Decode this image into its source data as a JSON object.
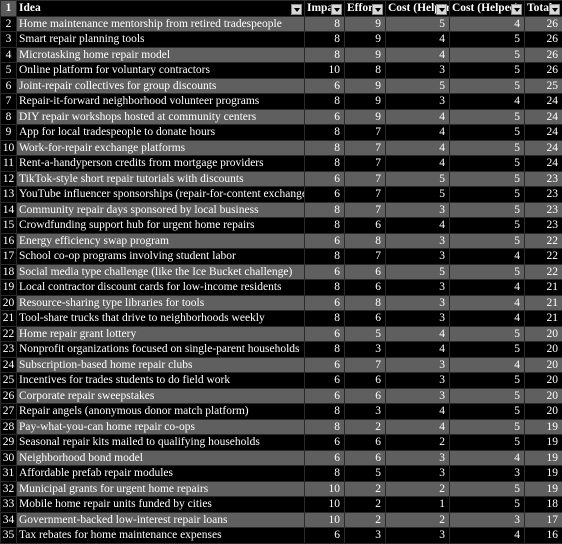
{
  "columns": [
    "Idea",
    "Impact",
    "Effort",
    "Cost (Helper)",
    "Cost (Helpee)",
    "Total"
  ],
  "header_row_number": "1",
  "rows": [
    {
      "n": "2",
      "idea": "Home maintenance mentorship from retired tradespeople",
      "impact": "8",
      "effort": "9",
      "ch": "5",
      "chee": "4",
      "total": "26"
    },
    {
      "n": "3",
      "idea": "Smart repair planning tools",
      "impact": "8",
      "effort": "9",
      "ch": "4",
      "chee": "5",
      "total": "26"
    },
    {
      "n": "4",
      "idea": "Microtasking home repair model",
      "impact": "8",
      "effort": "9",
      "ch": "4",
      "chee": "5",
      "total": "26"
    },
    {
      "n": "5",
      "idea": "Online platform for voluntary contractors",
      "impact": "10",
      "effort": "8",
      "ch": "3",
      "chee": "5",
      "total": "26"
    },
    {
      "n": "6",
      "idea": "Joint-repair collectives for group discounts",
      "impact": "6",
      "effort": "9",
      "ch": "5",
      "chee": "5",
      "total": "25"
    },
    {
      "n": "7",
      "idea": "Repair-it-forward neighborhood volunteer programs",
      "impact": "8",
      "effort": "9",
      "ch": "3",
      "chee": "4",
      "total": "24"
    },
    {
      "n": "8",
      "idea": "DIY repair workshops hosted at community centers",
      "impact": "6",
      "effort": "9",
      "ch": "4",
      "chee": "5",
      "total": "24"
    },
    {
      "n": "9",
      "idea": "App for local tradespeople to donate hours",
      "impact": "8",
      "effort": "7",
      "ch": "4",
      "chee": "5",
      "total": "24"
    },
    {
      "n": "10",
      "idea": "Work-for-repair exchange platforms",
      "impact": "8",
      "effort": "7",
      "ch": "4",
      "chee": "5",
      "total": "24"
    },
    {
      "n": "11",
      "idea": "Rent-a-handyperson credits from mortgage providers",
      "impact": "8",
      "effort": "7",
      "ch": "4",
      "chee": "5",
      "total": "24"
    },
    {
      "n": "12",
      "idea": "TikTok-style short repair tutorials with discounts",
      "impact": "6",
      "effort": "7",
      "ch": "5",
      "chee": "5",
      "total": "23"
    },
    {
      "n": "13",
      "idea": "YouTube influencer sponsorships (repair-for-content exchanges",
      "impact": "6",
      "effort": "7",
      "ch": "5",
      "chee": "5",
      "total": "23"
    },
    {
      "n": "14",
      "idea": "Community repair days sponsored by local business",
      "impact": "8",
      "effort": "7",
      "ch": "3",
      "chee": "5",
      "total": "23"
    },
    {
      "n": "15",
      "idea": "Crowdfunding support hub for urgent home repairs",
      "impact": "8",
      "effort": "6",
      "ch": "4",
      "chee": "5",
      "total": "23"
    },
    {
      "n": "16",
      "idea": "Energy efficiency swap program",
      "impact": "6",
      "effort": "8",
      "ch": "3",
      "chee": "5",
      "total": "22"
    },
    {
      "n": "17",
      "idea": "School co-op programs involving student labor",
      "impact": "8",
      "effort": "7",
      "ch": "3",
      "chee": "4",
      "total": "22"
    },
    {
      "n": "18",
      "idea": "Social media type challenge (like the Ice Bucket challenge)",
      "impact": "6",
      "effort": "6",
      "ch": "5",
      "chee": "5",
      "total": "22"
    },
    {
      "n": "19",
      "idea": "Local contractor discount cards for low-income residents",
      "impact": "8",
      "effort": "6",
      "ch": "3",
      "chee": "4",
      "total": "21"
    },
    {
      "n": "20",
      "idea": "Resource-sharing type libraries for tools",
      "impact": "6",
      "effort": "8",
      "ch": "3",
      "chee": "4",
      "total": "21"
    },
    {
      "n": "21",
      "idea": "Tool-share trucks that drive to neighborhoods weekly",
      "impact": "8",
      "effort": "6",
      "ch": "3",
      "chee": "4",
      "total": "21"
    },
    {
      "n": "22",
      "idea": "Home repair grant lottery",
      "impact": "6",
      "effort": "5",
      "ch": "4",
      "chee": "5",
      "total": "20"
    },
    {
      "n": "23",
      "idea": "Nonprofit organizations focused on single-parent households",
      "impact": "8",
      "effort": "3",
      "ch": "4",
      "chee": "5",
      "total": "20"
    },
    {
      "n": "24",
      "idea": "Subscription-based home repair clubs",
      "impact": "6",
      "effort": "7",
      "ch": "3",
      "chee": "4",
      "total": "20"
    },
    {
      "n": "25",
      "idea": "Incentives for trades students to do field work",
      "impact": "6",
      "effort": "6",
      "ch": "3",
      "chee": "5",
      "total": "20"
    },
    {
      "n": "26",
      "idea": "Corporate repair sweepstakes",
      "impact": "6",
      "effort": "6",
      "ch": "3",
      "chee": "5",
      "total": "20"
    },
    {
      "n": "27",
      "idea": "Repair angels (anonymous donor match platform)",
      "impact": "8",
      "effort": "3",
      "ch": "4",
      "chee": "5",
      "total": "20"
    },
    {
      "n": "28",
      "idea": "Pay-what-you-can home repair co-ops",
      "impact": "8",
      "effort": "2",
      "ch": "4",
      "chee": "5",
      "total": "19"
    },
    {
      "n": "29",
      "idea": "Seasonal repair kits mailed to qualifying households",
      "impact": "6",
      "effort": "6",
      "ch": "2",
      "chee": "5",
      "total": "19"
    },
    {
      "n": "30",
      "idea": "Neighborhood bond model",
      "impact": "6",
      "effort": "6",
      "ch": "3",
      "chee": "4",
      "total": "19"
    },
    {
      "n": "31",
      "idea": "Affordable prefab repair modules",
      "impact": "8",
      "effort": "5",
      "ch": "3",
      "chee": "3",
      "total": "19"
    },
    {
      "n": "32",
      "idea": "Municipal grants for urgent home repairs",
      "impact": "10",
      "effort": "2",
      "ch": "2",
      "chee": "5",
      "total": "19"
    },
    {
      "n": "33",
      "idea": "Mobile home repair units funded by cities",
      "impact": "10",
      "effort": "2",
      "ch": "1",
      "chee": "5",
      "total": "18"
    },
    {
      "n": "34",
      "idea": "Government-backed low-interest repair loans",
      "impact": "10",
      "effort": "2",
      "ch": "2",
      "chee": "3",
      "total": "17"
    },
    {
      "n": "35",
      "idea": "Tax rebates for home maintenance expenses",
      "impact": "6",
      "effort": "3",
      "ch": "3",
      "chee": "4",
      "total": "16"
    }
  ]
}
